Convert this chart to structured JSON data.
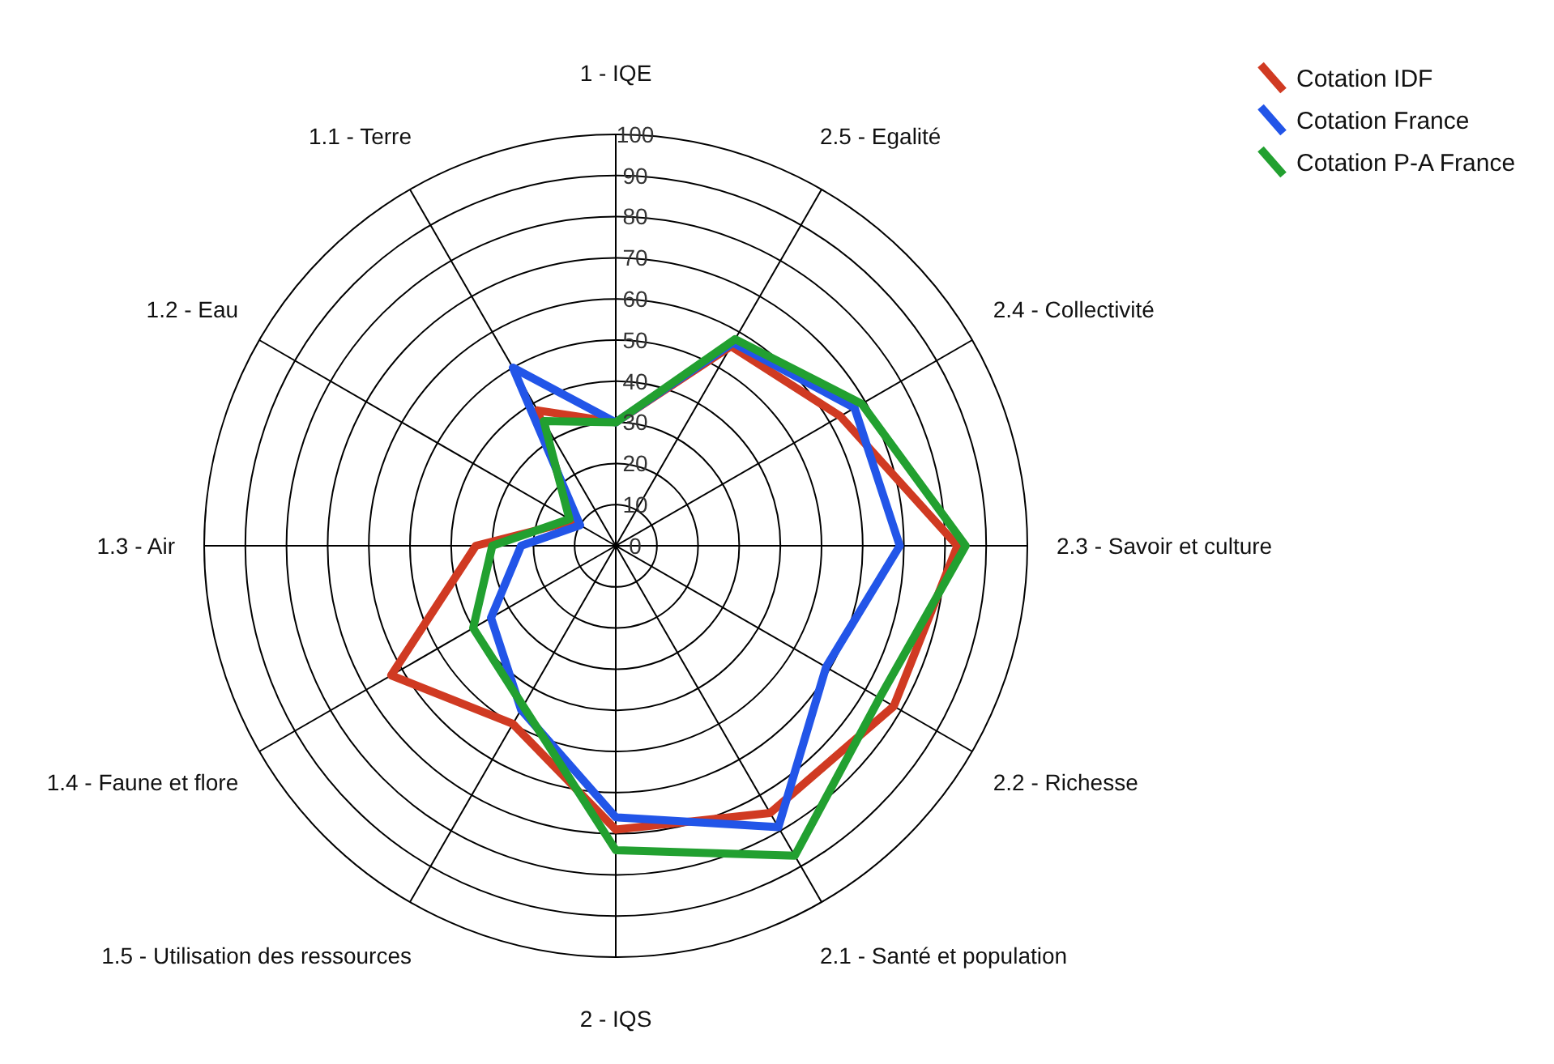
{
  "chart_data": {
    "type": "radar",
    "categories": [
      "1 - IQE",
      "2.5 - Egalité",
      "2.4 - Collectivité",
      "2.3 - Savoir et culture",
      "2.2 - Richesse",
      "2.1 - Santé et population",
      "2 - IQS",
      "1.5 - Utilisation des ressources",
      "1.4 - Faune et flore",
      "1.3 - Air",
      "1.2 - Eau",
      "1.1 - Terre"
    ],
    "series": [
      {
        "name": "Cotation IDF",
        "color": "#d03a22",
        "values": [
          30,
          56,
          63,
          83,
          78,
          75,
          69,
          50,
          63,
          34,
          12,
          38
        ]
      },
      {
        "name": "Cotation France",
        "color": "#2255e8",
        "values": [
          30,
          57,
          67,
          69,
          59,
          79,
          66,
          46,
          35,
          23,
          10,
          50
        ]
      },
      {
        "name": "Cotation P-A France",
        "color": "#22a030",
        "values": [
          30,
          58,
          69,
          85,
          74,
          87,
          74,
          45,
          40,
          30,
          13,
          35
        ]
      }
    ],
    "ylim": [
      0,
      100
    ],
    "yticks": [
      0,
      10,
      20,
      30,
      40,
      50,
      60,
      70,
      80,
      90,
      100
    ],
    "grid": true,
    "legend": "top right"
  }
}
